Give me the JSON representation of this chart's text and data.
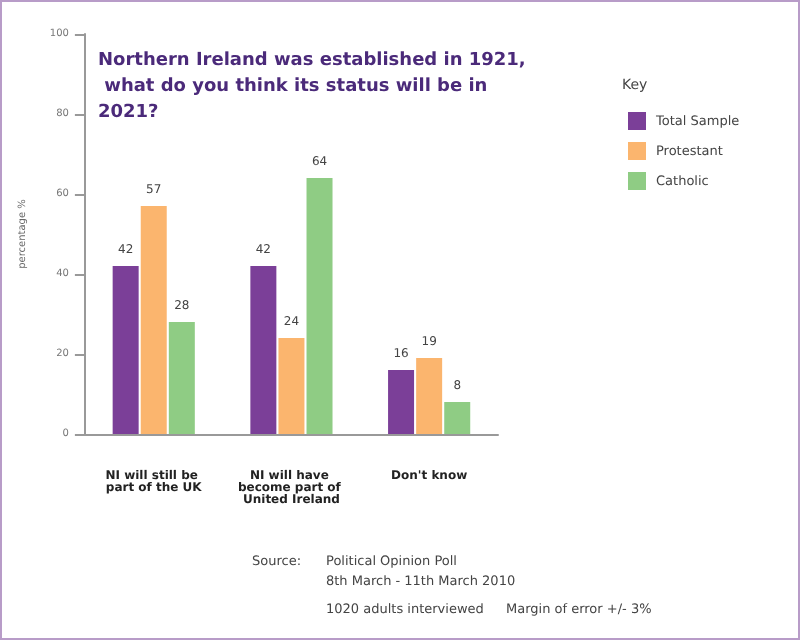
{
  "chart_data": {
    "type": "bar",
    "title": "Northern Ireland was established in 1921, what do you think its status will be in 2021?",
    "ylabel": "percentage %",
    "legend_title": "Key",
    "categories": [
      "NI will still be part of the UK",
      "NI will have become part of United Ireland",
      "Don't know"
    ],
    "series": [
      {
        "name": "Total Sample",
        "color": "#7b3f98",
        "values": [
          42,
          42,
          16
        ]
      },
      {
        "name": "Protestant",
        "color": "#fbb56e",
        "values": [
          57,
          24,
          19
        ]
      },
      {
        "name": "Catholic",
        "color": "#8fcc84",
        "values": [
          28,
          64,
          8
        ]
      }
    ],
    "ylim": [
      0,
      100
    ],
    "yticks": [
      0,
      20,
      40,
      60,
      80,
      100
    ],
    "grid": false,
    "legend": "top right",
    "data_labels": true,
    "annotations": [
      "Source:",
      "Political Opinion Poll",
      "8th March - 11th March 2010",
      "1020 adults interviewed",
      "Margin of error +/- 3%"
    ]
  }
}
